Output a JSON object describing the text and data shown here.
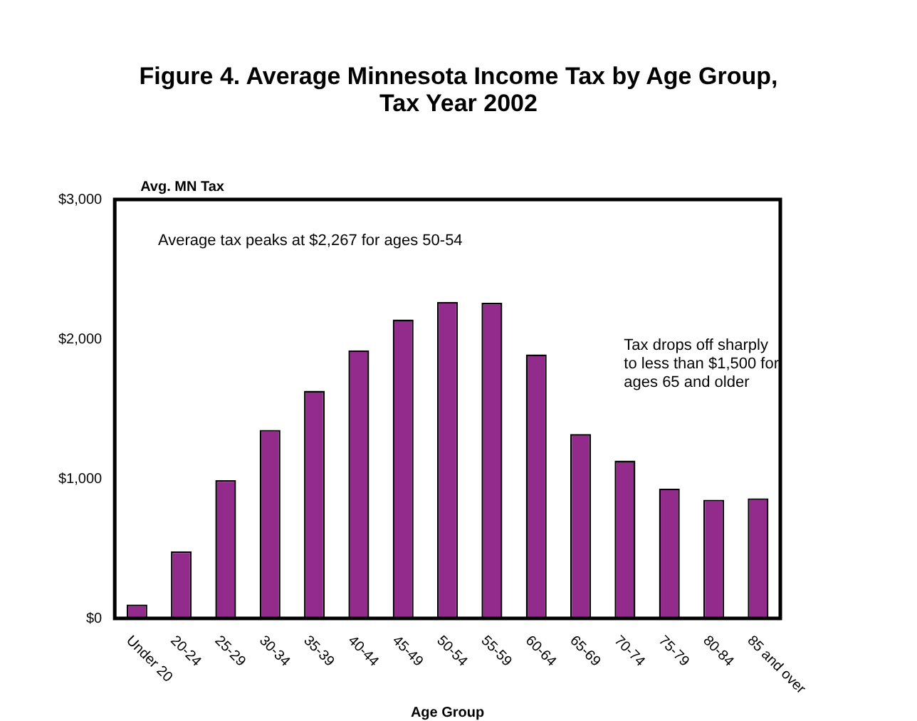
{
  "chart_data": {
    "type": "bar",
    "title": "Figure 4. Average Minnesota Income Tax by Age Group, Tax Year 2002",
    "ylabel": "Avg. MN Tax",
    "xlabel": "Age Group",
    "categories": [
      "Under 20",
      "20-24",
      "25-29",
      "30-34",
      "35-39",
      "40-44",
      "45-49",
      "50-54",
      "55-59",
      "60-64",
      "65-69",
      "70-74",
      "75-79",
      "80-84",
      "85 and over"
    ],
    "values": [
      100,
      480,
      990,
      1350,
      1630,
      1920,
      2140,
      2267,
      2260,
      1890,
      1320,
      1130,
      930,
      850,
      860
    ],
    "color": "#922b8c",
    "ylim": [
      0,
      3000
    ],
    "yticks": [
      {
        "value": 0,
        "label": "$0"
      },
      {
        "value": 1000,
        "label": "$1,000"
      },
      {
        "value": 2000,
        "label": "$2,000"
      },
      {
        "value": 3000,
        "label": "$3,000"
      }
    ],
    "grid": false,
    "annotations": [
      "Average tax peaks at $2,267 for ages 50-54",
      "Tax drops off sharply to less than $1,500 for ages 65 and older"
    ]
  }
}
